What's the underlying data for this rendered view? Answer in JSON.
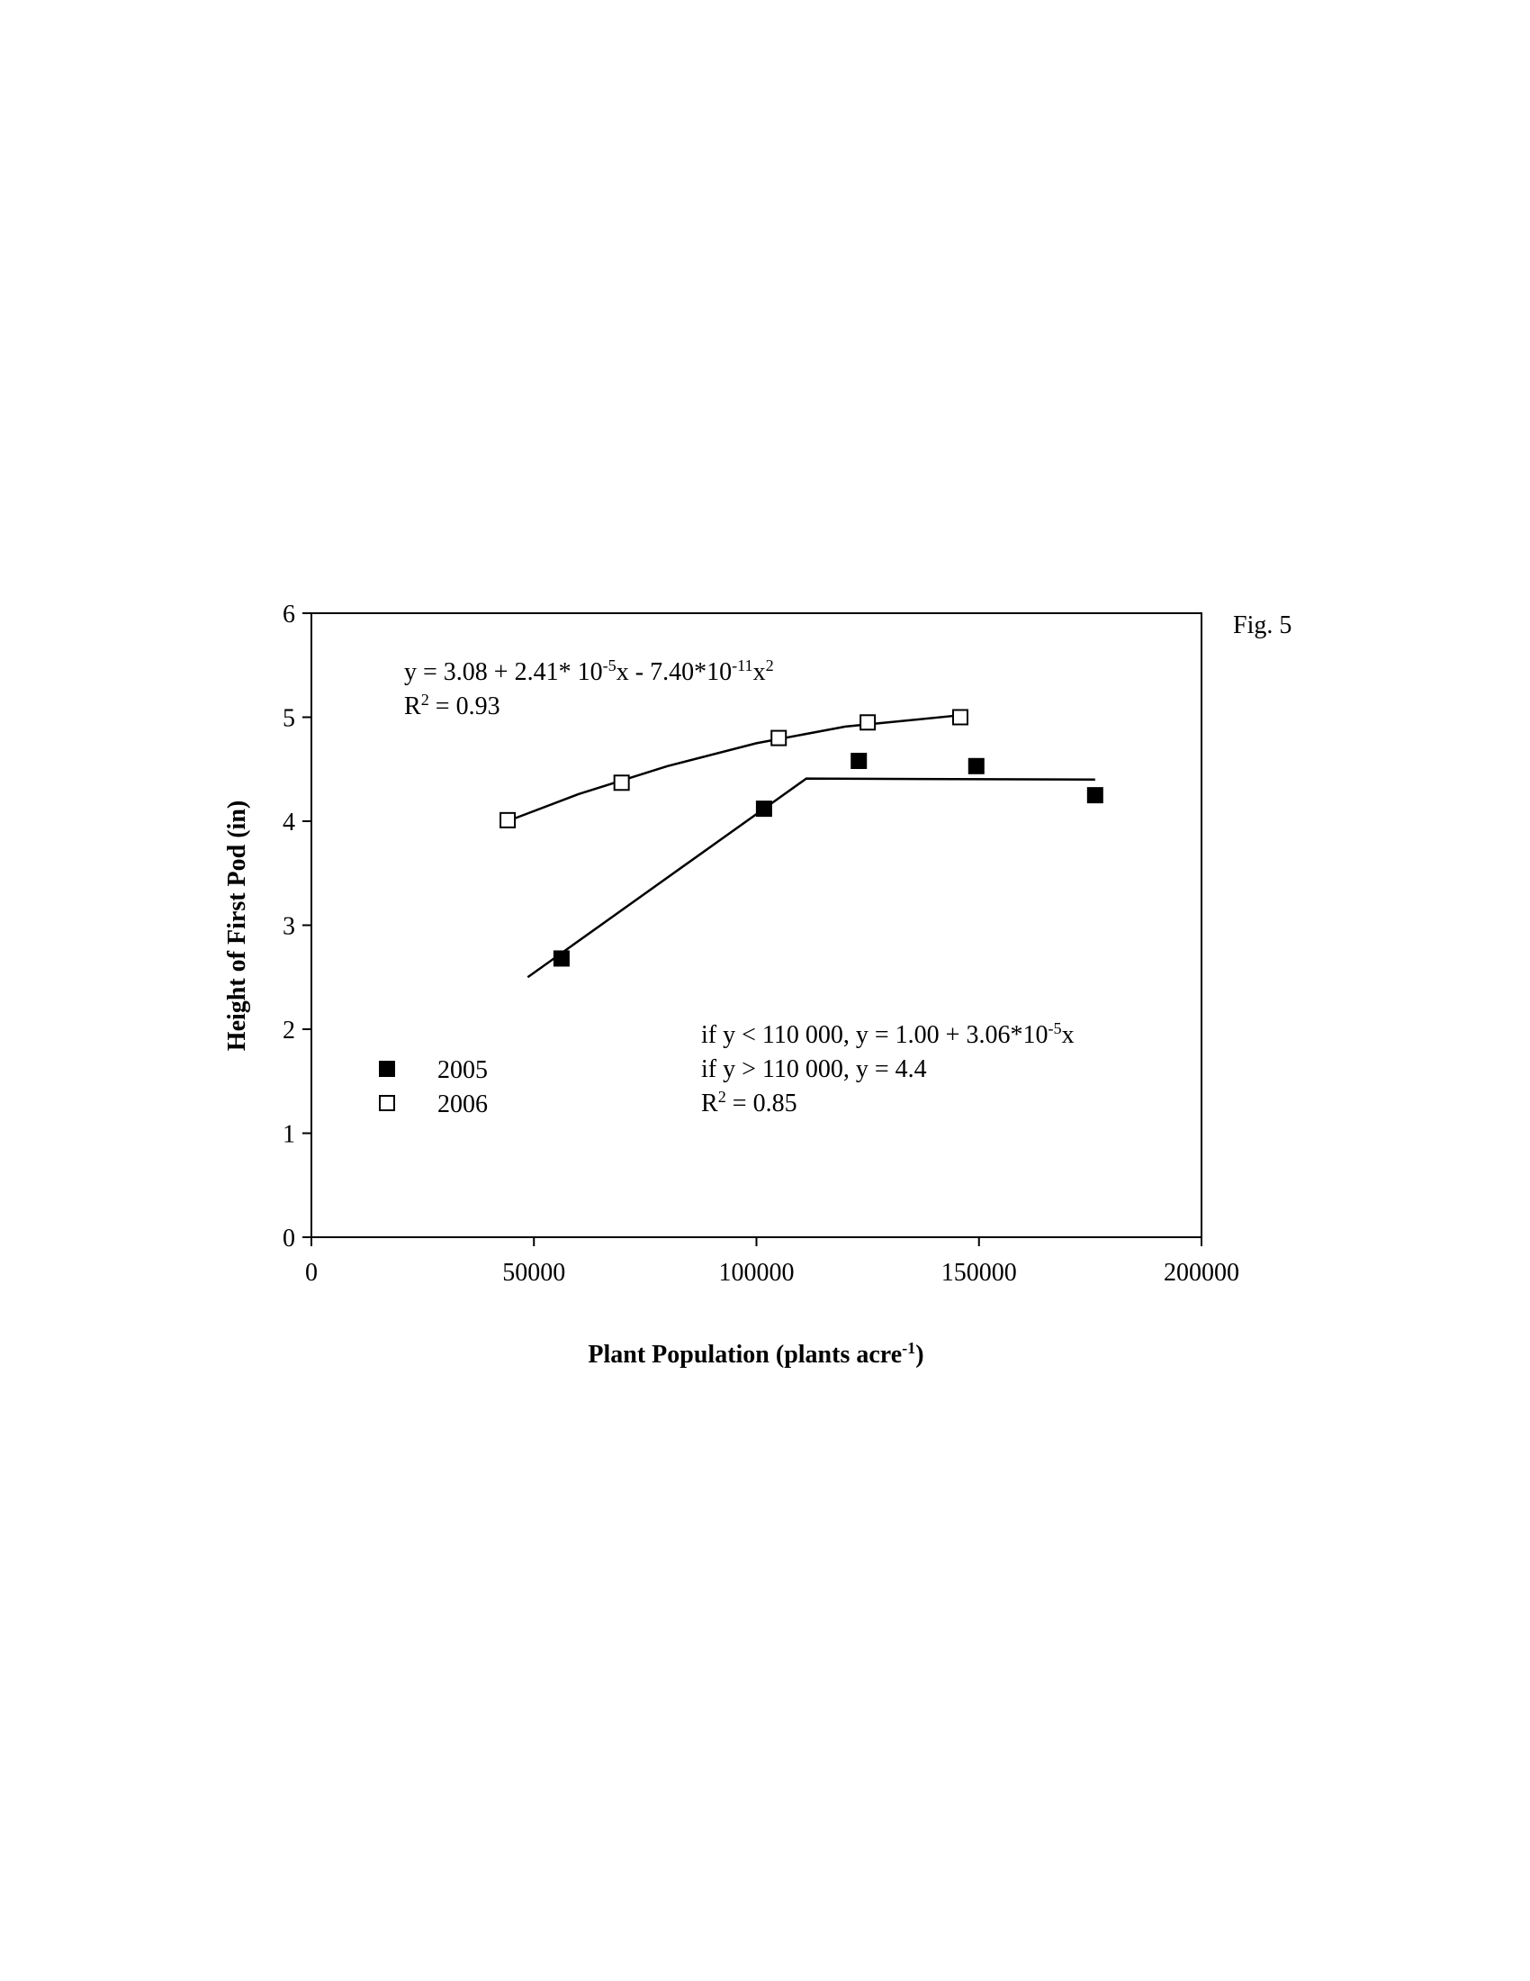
{
  "chart_data": {
    "type": "scatter",
    "title": "Fig. 5",
    "xlabel": [
      "Plant Population (plants acre",
      "-1",
      ")"
    ],
    "ylabel": "Height of First Pod (in)",
    "xlim": [
      0,
      200000
    ],
    "ylim": [
      0,
      6
    ],
    "xticks": [
      0,
      50000,
      100000,
      150000,
      200000
    ],
    "yticks": [
      0,
      1,
      2,
      3,
      4,
      5,
      6
    ],
    "series": [
      {
        "name": "2005",
        "color": "#000000",
        "filled": true,
        "x": [
          56200,
          101700,
          123000,
          149400,
          176100
        ],
        "values": [
          2.68,
          4.12,
          4.58,
          4.53,
          4.25
        ]
      },
      {
        "name": "2006",
        "color": "#000000",
        "filled": false,
        "x": [
          44100,
          69700,
          105000,
          125000,
          145800
        ],
        "values": [
          4.01,
          4.37,
          4.8,
          4.95,
          5.0
        ]
      }
    ],
    "fits": [
      {
        "x": [
          48600,
          111200,
          176100
        ],
        "values": [
          2.5,
          4.41,
          4.4
        ]
      },
      {
        "x": [
          44000,
          60000,
          80000,
          100000,
          120000,
          146000
        ],
        "values": [
          4.0,
          4.26,
          4.53,
          4.75,
          4.91,
          5.02
        ]
      }
    ],
    "annotations": [
      [
        "y = 3.08 + 2.41* 10",
        "-5",
        "x - 7.40*10",
        "-11",
        "x",
        "2"
      ],
      [
        "R",
        "2",
        " = 0.93"
      ],
      [
        "if y < 110 000, y = 1.00 + 3.06*10",
        "-5",
        "x"
      ],
      [
        "if y > 110 000, y = 4.4"
      ],
      [
        "R",
        "2",
        " = 0.85"
      ]
    ]
  }
}
